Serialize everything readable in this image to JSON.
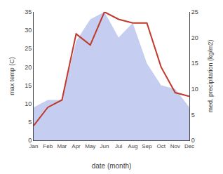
{
  "chart_data": {
    "type": "line",
    "categories": [
      "Jan",
      "Feb",
      "Mar",
      "Apr",
      "May",
      "Jun",
      "Jul",
      "Aug",
      "Sep",
      "Oct",
      "Nov",
      "Dec"
    ],
    "xlabel": "date (month)",
    "ylabel": "max temp (C)",
    "y2label": "med. precipitation (kg/m2)",
    "series": [
      {
        "type": "line",
        "color": "#c0392b",
        "values": [
          4,
          9,
          11,
          29,
          26,
          35,
          33,
          32,
          32,
          20,
          13,
          12
        ]
      },
      {
        "type": "area",
        "color": "#c5cdf0",
        "axis": "y2",
        "values": [
          6.428571428571429,
          7.857142857142857,
          7.857142857142857,
          19.285714285714285,
          23.571428571428573,
          25,
          20,
          22.857142857142858,
          15,
          10.714285714285714,
          10,
          6.428571428571429
        ]
      }
    ],
    "ylim": [
      0,
      35
    ],
    "yticks": [
      0,
      5,
      10,
      15,
      20,
      25,
      30,
      35
    ],
    "y2lim": [
      0,
      25
    ],
    "y2ticks": [
      0,
      5,
      10,
      15,
      20,
      25
    ],
    "grid": false
  }
}
